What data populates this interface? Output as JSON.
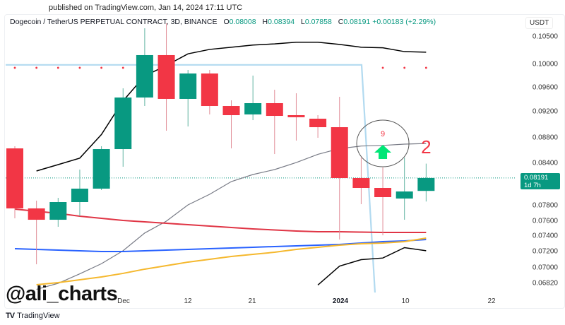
{
  "published": "published on TradingView.com, Jan 14, 2024 17:11 UTC",
  "legend": {
    "symbol": "Dogecoin / TetherUS PERPETUAL CONTRACT, 3D, BINANCE",
    "open_label": "O",
    "open": "0.08008",
    "high_label": "H",
    "high": "0.08394",
    "low_label": "L",
    "low": "0.07858",
    "close_label": "C",
    "close": "0.08191",
    "change": "+0.00183 (+2.29%)"
  },
  "price_axis": {
    "unit": "USDT",
    "ticks": [
      "0.10500",
      "0.10000",
      "0.09600",
      "0.09200",
      "0.08800",
      "0.08400",
      "0.07800",
      "0.07600",
      "0.07400",
      "0.07200",
      "0.07000",
      "0.06820"
    ],
    "last_price": "0.08191",
    "countdown": "1d 7h"
  },
  "time_axis": {
    "labels": [
      "Dec",
      "12",
      "21",
      "2024",
      "10",
      "22"
    ]
  },
  "annotations": {
    "count_label": "9",
    "number_label": "2"
  },
  "watermark": "@ali_charts",
  "footer_brand": "TradingView",
  "colors": {
    "up": "#089981",
    "down": "#f23645",
    "upper_band": "#000000",
    "middle_band": "#787b86",
    "ma_red": "#e03545",
    "ma_blue": "#2962ff",
    "ma_yellow": "#f5b82e",
    "step_line": "#b2daf0",
    "signal_arrow": "#00e676"
  },
  "chart_data": {
    "type": "candlestick",
    "timeframe": "3D",
    "ylim": [
      0.0675,
      0.1075
    ],
    "candles": [
      {
        "o": 0.08633,
        "h": 0.08667,
        "l": 0.07636,
        "c": 0.07764
      },
      {
        "o": 0.07764,
        "h": 0.0787,
        "l": 0.07043,
        "c": 0.07618
      },
      {
        "o": 0.07618,
        "h": 0.0791,
        "l": 0.07524,
        "c": 0.0785
      },
      {
        "o": 0.0785,
        "h": 0.0831,
        "l": 0.07664,
        "c": 0.0804
      },
      {
        "o": 0.0804,
        "h": 0.08667,
        "l": 0.0802,
        "c": 0.08622
      },
      {
        "o": 0.08622,
        "h": 0.09588,
        "l": 0.0835,
        "c": 0.09435
      },
      {
        "o": 0.09435,
        "h": 0.10654,
        "l": 0.09294,
        "c": 0.10167
      },
      {
        "o": 0.10167,
        "h": 0.10743,
        "l": 0.08908,
        "c": 0.09412
      },
      {
        "o": 0.09412,
        "h": 0.09903,
        "l": 0.08973,
        "c": 0.09842
      },
      {
        "o": 0.09842,
        "h": 0.09903,
        "l": 0.09157,
        "c": 0.09294
      },
      {
        "o": 0.09294,
        "h": 0.09388,
        "l": 0.08633,
        "c": 0.09146
      },
      {
        "o": 0.09157,
        "h": 0.09806,
        "l": 0.0907,
        "c": 0.09341
      },
      {
        "o": 0.09341,
        "h": 0.09565,
        "l": 0.08544,
        "c": 0.09135
      },
      {
        "o": 0.09146,
        "h": 0.09506,
        "l": 0.08756,
        "c": 0.09114
      },
      {
        "o": 0.09092,
        "h": 0.09146,
        "l": 0.088,
        "c": 0.08962
      },
      {
        "o": 0.08962,
        "h": 0.09447,
        "l": 0.07355,
        "c": 0.0819
      },
      {
        "o": 0.0819,
        "h": 0.08489,
        "l": 0.0782,
        "c": 0.0805
      },
      {
        "o": 0.0805,
        "h": 0.0834,
        "l": 0.07409,
        "c": 0.0792
      },
      {
        "o": 0.079,
        "h": 0.08489,
        "l": 0.07618,
        "c": 0.08
      },
      {
        "o": 0.08008,
        "h": 0.08394,
        "l": 0.07858,
        "c": 0.08191
      }
    ],
    "lines": [
      {
        "id": "upper-band",
        "color": "#000000",
        "values": [
          null,
          0.0829,
          0.0838,
          0.0848,
          0.0885,
          0.0938,
          0.098,
          0.0998,
          0.1019,
          0.1027,
          0.1031,
          0.1035,
          0.1037,
          0.104,
          0.104,
          0.1036,
          0.1031,
          0.103,
          0.1023,
          0.1022
        ]
      },
      {
        "id": "lower-band",
        "color": "#000000",
        "values": [
          null,
          null,
          null,
          null,
          null,
          null,
          null,
          null,
          null,
          null,
          null,
          null,
          null,
          null,
          0.068,
          0.0702,
          0.071,
          0.0712,
          0.0725,
          0.0721
        ]
      },
      {
        "id": "middle-band",
        "color": "#787b86",
        "values": [
          null,
          0.0675,
          0.0682,
          0.0693,
          0.0705,
          0.0721,
          0.0744,
          0.076,
          0.0781,
          0.0796,
          0.0814,
          0.0824,
          0.0831,
          0.0841,
          0.0854,
          0.0863,
          0.0867,
          0.0868,
          0.087,
          0.0871
        ]
      },
      {
        "id": "ma-red",
        "color": "#e03545",
        "values": [
          0.07755,
          0.07727,
          0.077,
          0.07664,
          0.07636,
          0.07609,
          0.0759,
          0.07571,
          0.07552,
          0.07533,
          0.07514,
          0.07495,
          0.07481,
          0.07467,
          0.07457,
          0.07457,
          0.07452,
          0.07448,
          0.07448,
          0.07448
        ]
      },
      {
        "id": "ma-blue",
        "color": "#2962ff",
        "values": [
          0.07236,
          0.07227,
          0.07218,
          0.07209,
          0.072,
          0.072,
          0.07209,
          0.07218,
          0.07227,
          0.07236,
          0.07245,
          0.07255,
          0.07264,
          0.07273,
          0.07282,
          0.07291,
          0.07309,
          0.07327,
          0.07336,
          0.07355
        ]
      },
      {
        "id": "ma-yellow",
        "color": "#f5b82e",
        "values": [
          null,
          0.06804,
          0.06828,
          0.06861,
          0.06894,
          0.06935,
          0.06984,
          0.07026,
          0.0707,
          0.07104,
          0.07139,
          0.07165,
          0.07191,
          0.07227,
          0.07255,
          0.07282,
          0.073,
          0.07309,
          0.07327,
          0.07373
        ]
      }
    ],
    "step_line_level": 0.0999,
    "dot_level": 0.0994,
    "dot_indices": [
      0,
      1,
      2,
      3,
      4,
      5,
      17,
      18,
      19
    ],
    "signal": {
      "index": 17,
      "type": "buy",
      "count": 9
    },
    "last_price": 0.08191
  }
}
